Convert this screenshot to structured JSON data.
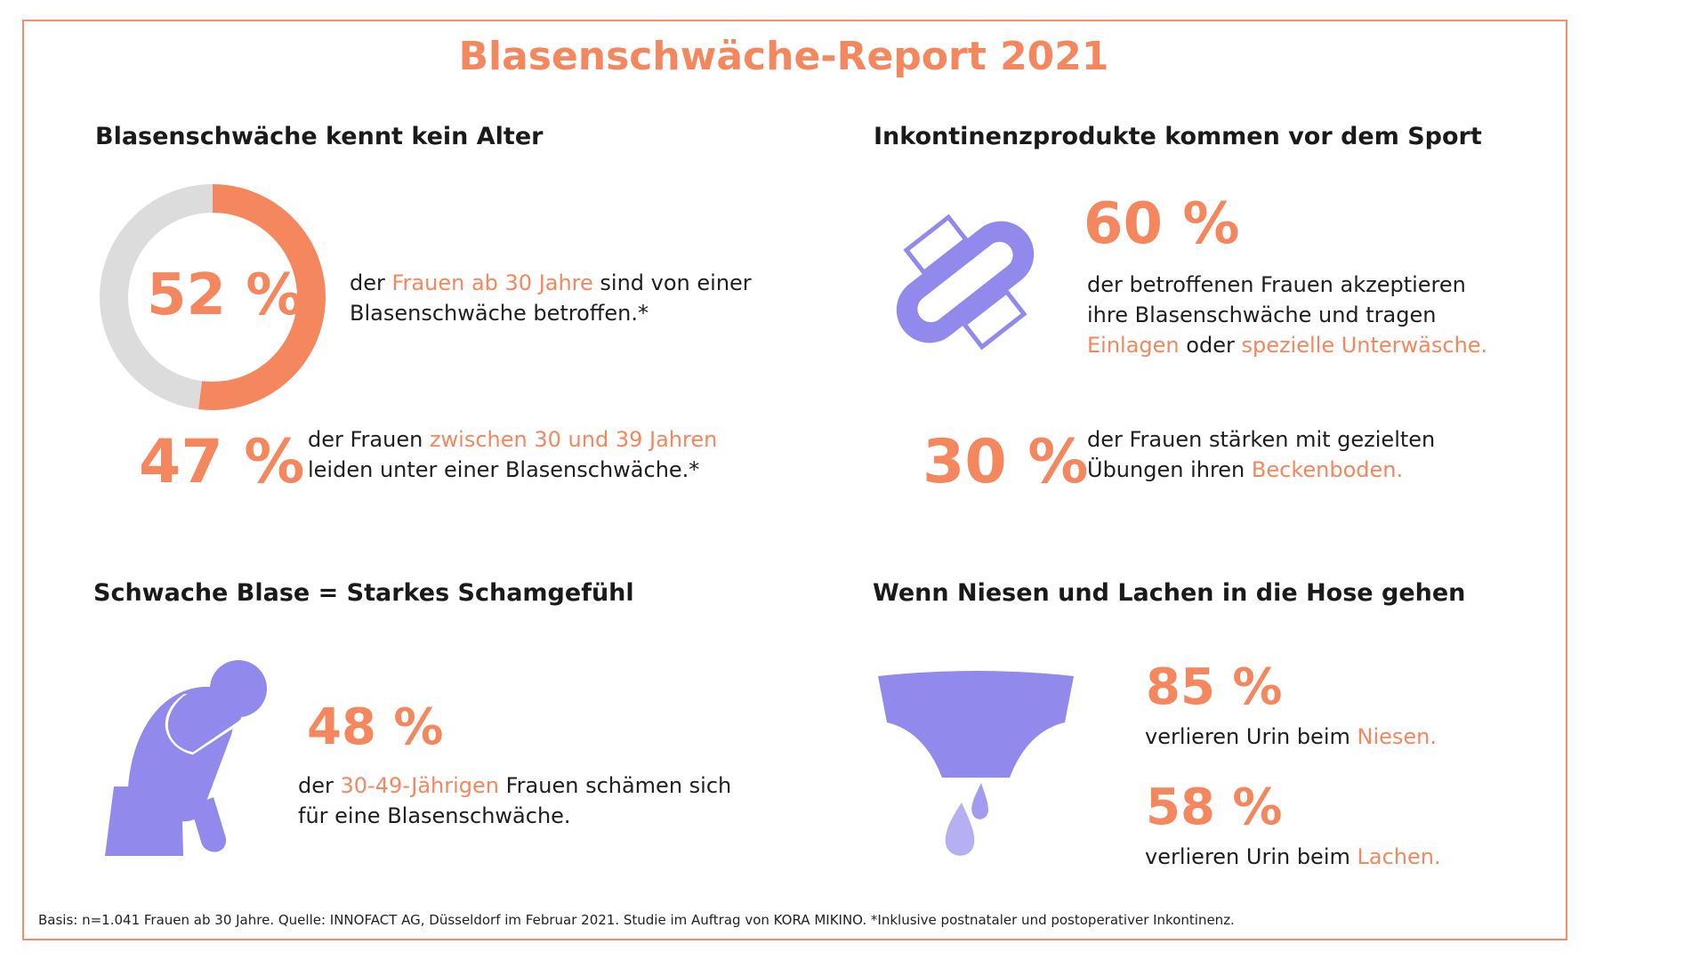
{
  "title": "Blasenschwäche-Report 2021",
  "colors": {
    "accent": "#f4875e",
    "icon": "#9289ec",
    "donut_rest": "#dcdcdc"
  },
  "sections": {
    "age": {
      "heading": "Blasenschwäche kennt kein Alter",
      "stat1": {
        "value": "52 %",
        "text_a": "der ",
        "hl": "Frauen ab 30 Jahre",
        "text_b": " sind von einer Blasenschwäche betroffen.*"
      },
      "stat2": {
        "value": "47 %",
        "text_a": "der Frauen ",
        "hl": "zwischen 30 und 39 Jahren",
        "text_b": " leiden unter einer Blasenschwäche.*"
      }
    },
    "products": {
      "heading": "Inkontinenzprodukte kommen vor dem Sport",
      "icon": "pad-icon",
      "stat1": {
        "value": "60 %",
        "text_a": "der betroffenen Frauen akzeptieren ihre Blasenschwäche und tragen ",
        "hl1": "Einlagen",
        "text_b": " oder ",
        "hl2": "spezielle Unterwäsche."
      },
      "stat2": {
        "value": "30 %",
        "text_a": "der Frauen stärken mit gezielten Übungen ihren ",
        "hl": "Beckenboden."
      }
    },
    "shame": {
      "heading": "Schwache Blase = Starkes Schamgefühl",
      "icon": "ashamed-person-icon",
      "stat1": {
        "value": "48 %",
        "text_a": "der ",
        "hl": "30-49-Jährigen",
        "text_b": " Frauen schämen sich für eine Blasenschwäche."
      }
    },
    "sneeze": {
      "heading": "Wenn Niesen und Lachen in die Hose gehen",
      "icon": "underwear-drops-icon",
      "stat1": {
        "value": "85 %",
        "text_a": "verlieren Urin beim ",
        "hl": "Niesen."
      },
      "stat2": {
        "value": "58 %",
        "text_a": "verlieren Urin beim ",
        "hl": "Lachen."
      }
    }
  },
  "footnote": "Basis: n=1.041 Frauen ab 30 Jahre. Quelle: INNOFACT AG, Düsseldorf im Februar 2021. Studie im Auftrag von KORA MIKINO. *Inklusive postnataler und postoperativer Inkontinenz.",
  "chart_data": {
    "type": "pie",
    "variant": "donut",
    "values": [
      52,
      48
    ],
    "center_label": "52 %"
  }
}
